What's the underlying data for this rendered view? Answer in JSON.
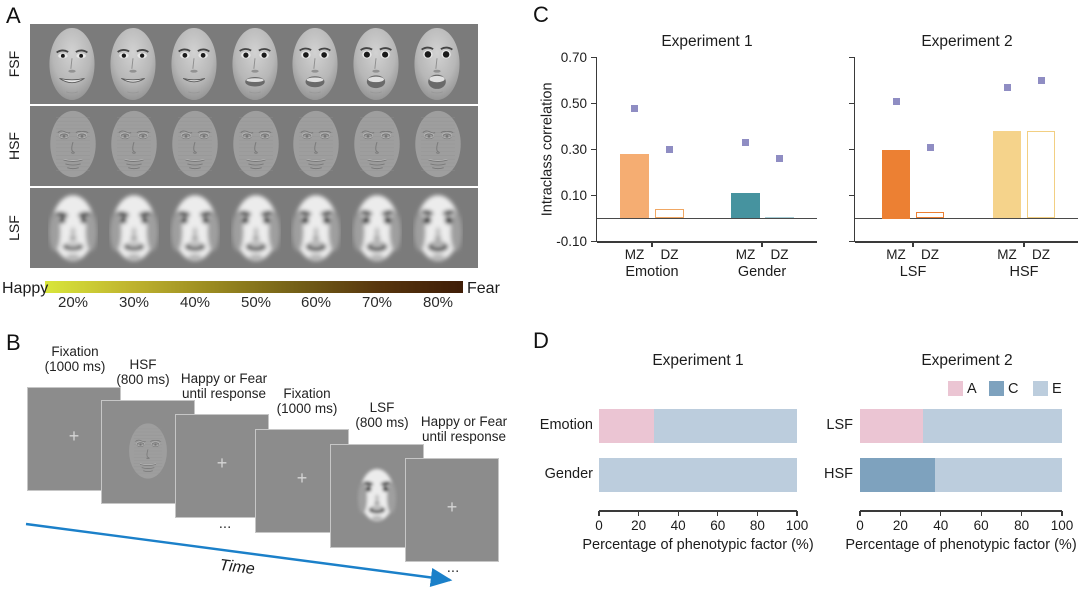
{
  "panel_a": {
    "label": "A",
    "row_labels": [
      "FSF",
      "HSF",
      "LSF"
    ],
    "faces_per_row": 7,
    "colorbar": {
      "left_label": "Happy",
      "right_label": "Fear",
      "tick_labels": [
        "20%",
        "30%",
        "40%",
        "50%",
        "60%",
        "70%",
        "80%"
      ],
      "gradient": [
        "#d9e63a",
        "#c0b52f",
        "#9a8a20",
        "#746017",
        "#57350d",
        "#3f1d07"
      ]
    }
  },
  "panel_b": {
    "label": "B",
    "screens": [
      {
        "title_lines": [
          "Fixation",
          "(1000 ms)"
        ],
        "content": "fixation-cross"
      },
      {
        "title_lines": [
          "HSF",
          "(800 ms)"
        ],
        "content": "hsf-face"
      },
      {
        "title_lines": [
          "Happy or Fear",
          "until response"
        ],
        "content": "fixation-cross",
        "ellipsis_after": "..."
      },
      {
        "title_lines": [
          "Fixation",
          "(1000 ms)"
        ],
        "content": "fixation-cross"
      },
      {
        "title_lines": [
          "LSF",
          "(800 ms)"
        ],
        "content": "lsf-face"
      },
      {
        "title_lines": [
          "Happy or Fear",
          "until response"
        ],
        "content": "fixation-cross",
        "ellipsis_after": "..."
      }
    ],
    "time_label": "Time",
    "arrow_color": "#1b80c9"
  },
  "panel_c": {
    "label": "C"
  },
  "panel_d": {
    "label": "D"
  },
  "chart_data": [
    {
      "id": "exp1_intraclass",
      "type": "bar",
      "title": "Experiment 1",
      "ylabel": "Intraclass correlation",
      "ylim": [
        -0.1,
        0.7
      ],
      "yticks": [
        "0.70",
        "0.50",
        "0.30",
        "0.10",
        "-0.10"
      ],
      "yticks_labeled": true,
      "group_labels": [
        "Emotion",
        "Gender"
      ],
      "marker_color": "#8f8dc3",
      "series": [
        {
          "group": "Emotion",
          "bar": "MZ",
          "value": 0.28,
          "marker": 0.48,
          "style": "filled",
          "color": "#f5ad72"
        },
        {
          "group": "Emotion",
          "bar": "DZ",
          "value": 0.04,
          "marker": 0.3,
          "style": "outline",
          "color": "#f0a763"
        },
        {
          "group": "Gender",
          "bar": "MZ",
          "value": 0.11,
          "marker": 0.33,
          "style": "filled",
          "color": "#46939f"
        },
        {
          "group": "Gender",
          "bar": "DZ",
          "value": 0.008,
          "marker": 0.26,
          "style": "filled",
          "color": "#a7ced6"
        }
      ]
    },
    {
      "id": "exp2_intraclass",
      "type": "bar",
      "title": "Experiment 2",
      "ylabel": "",
      "ylim": [
        -0.1,
        0.7
      ],
      "yticks": [
        "0.70",
        "0.50",
        "0.30",
        "0.10",
        "-0.10"
      ],
      "yticks_labeled": false,
      "group_labels": [
        "LSF",
        "HSF"
      ],
      "marker_color": "#8f8dc3",
      "series": [
        {
          "group": "LSF",
          "bar": "MZ",
          "value": 0.3,
          "marker": 0.51,
          "style": "filled",
          "color": "#ec8033"
        },
        {
          "group": "LSF",
          "bar": "DZ",
          "value": 0.03,
          "marker": 0.31,
          "style": "outline",
          "color": "#ec8033"
        },
        {
          "group": "HSF",
          "bar": "MZ",
          "value": 0.38,
          "marker": 0.57,
          "style": "filled",
          "color": "#f5d38b"
        },
        {
          "group": "HSF",
          "bar": "DZ",
          "value": 0.38,
          "marker": 0.6,
          "style": "outline",
          "color": "#f2cf82"
        }
      ]
    },
    {
      "id": "exp1_ace",
      "type": "stacked_bar_horizontal",
      "title": "Experiment 1",
      "xlabel": "Percentage of phenotypic factor (%)",
      "xticks": [
        0,
        20,
        40,
        60,
        80,
        100
      ],
      "xlim": [
        0,
        100
      ],
      "categories": [
        "Emotion",
        "Gender"
      ],
      "legend": false,
      "series": [
        {
          "name": "A",
          "color": "#ebc5d3",
          "values": [
            28,
            0
          ]
        },
        {
          "name": "C",
          "color": "#7ea2be",
          "values": [
            0,
            0
          ]
        },
        {
          "name": "E",
          "color": "#bccddd",
          "values": [
            72,
            100
          ]
        }
      ]
    },
    {
      "id": "exp2_ace",
      "type": "stacked_bar_horizontal",
      "title": "Experiment 2",
      "xlabel": "Percentage of phenotypic factor (%)",
      "xticks": [
        0,
        20,
        40,
        60,
        80,
        100
      ],
      "xlim": [
        0,
        100
      ],
      "categories": [
        "LSF",
        "HSF"
      ],
      "legend": true,
      "legend_labels": [
        "A",
        "C",
        "E"
      ],
      "series": [
        {
          "name": "A",
          "color": "#ebc5d3",
          "values": [
            31,
            0
          ]
        },
        {
          "name": "C",
          "color": "#7ea2be",
          "values": [
            0,
            37
          ]
        },
        {
          "name": "E",
          "color": "#bccddd",
          "values": [
            69,
            63
          ]
        }
      ]
    }
  ]
}
